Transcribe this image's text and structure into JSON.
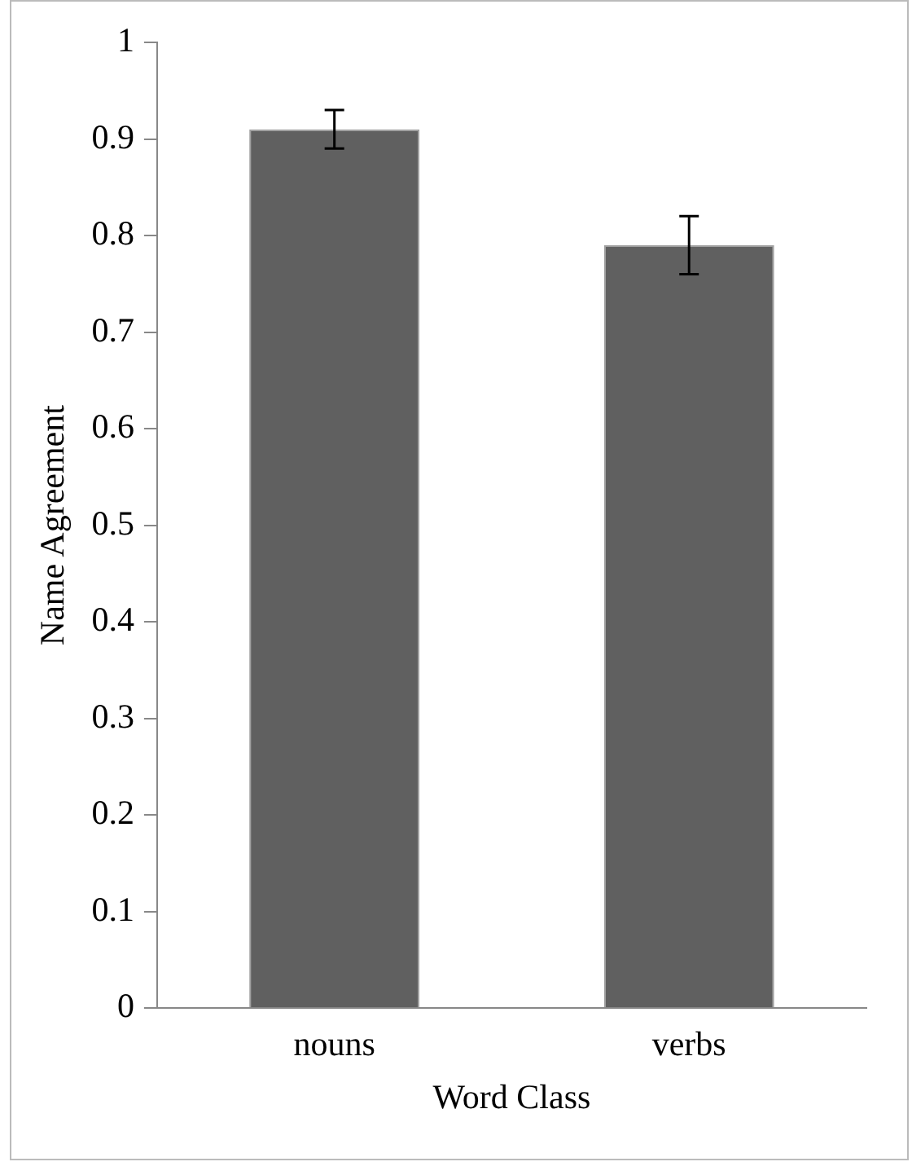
{
  "chart_data": {
    "type": "bar",
    "xlabel": "Word Class",
    "ylabel": "Name Agreement",
    "categories": [
      "nouns",
      "verbs"
    ],
    "values": [
      0.91,
      0.79
    ],
    "errors": [
      0.02,
      0.03
    ],
    "color": "#606060",
    "ylim": [
      0,
      1
    ],
    "yticks": [
      0,
      0.1,
      0.2,
      0.3,
      0.4,
      0.5,
      0.6,
      0.7,
      0.8,
      0.9,
      1
    ],
    "grid": false,
    "legend": false
  }
}
